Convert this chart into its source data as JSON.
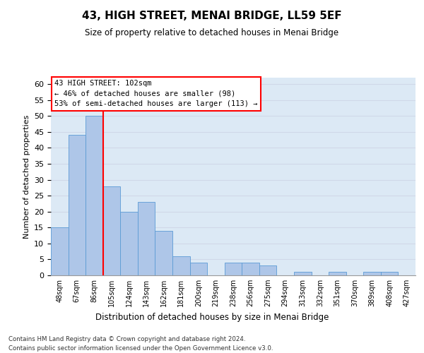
{
  "title": "43, HIGH STREET, MENAI BRIDGE, LL59 5EF",
  "subtitle": "Size of property relative to detached houses in Menai Bridge",
  "xlabel": "Distribution of detached houses by size in Menai Bridge",
  "ylabel": "Number of detached properties",
  "footer_line1": "Contains HM Land Registry data © Crown copyright and database right 2024.",
  "footer_line2": "Contains public sector information licensed under the Open Government Licence v3.0.",
  "categories": [
    "48sqm",
    "67sqm",
    "86sqm",
    "105sqm",
    "124sqm",
    "143sqm",
    "162sqm",
    "181sqm",
    "200sqm",
    "219sqm",
    "238sqm",
    "256sqm",
    "275sqm",
    "294sqm",
    "313sqm",
    "332sqm",
    "351sqm",
    "370sqm",
    "389sqm",
    "408sqm",
    "427sqm"
  ],
  "values": [
    15,
    44,
    50,
    28,
    20,
    23,
    14,
    6,
    4,
    0,
    4,
    4,
    3,
    0,
    1,
    0,
    1,
    0,
    1,
    1,
    0
  ],
  "bar_color": "#aec6e8",
  "bar_edge_color": "#5b9bd5",
  "grid_color": "#d0d8e8",
  "bg_color": "#dce9f5",
  "ref_line_x": 2.5,
  "ref_line_color": "red",
  "annotation_text": "43 HIGH STREET: 102sqm\n← 46% of detached houses are smaller (98)\n53% of semi-detached houses are larger (113) →",
  "annotation_box_color": "white",
  "annotation_box_edge": "red",
  "ylim": [
    0,
    62
  ],
  "yticks": [
    0,
    5,
    10,
    15,
    20,
    25,
    30,
    35,
    40,
    45,
    50,
    55,
    60
  ]
}
